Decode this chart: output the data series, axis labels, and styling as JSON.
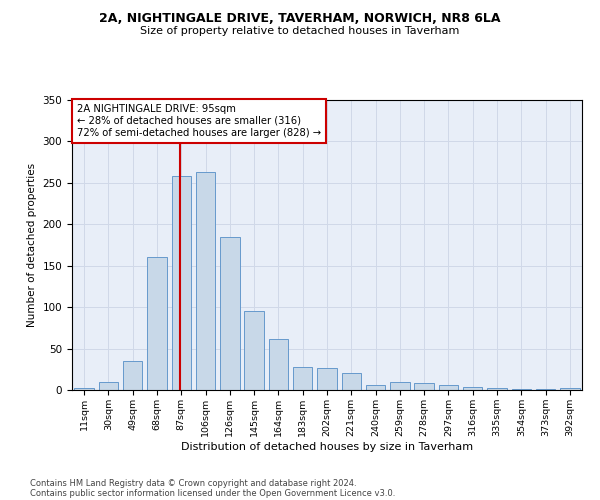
{
  "title1": "2A, NIGHTINGALE DRIVE, TAVERHAM, NORWICH, NR8 6LA",
  "title2": "Size of property relative to detached houses in Taverham",
  "xlabel": "Distribution of detached houses by size in Taverham",
  "ylabel": "Number of detached properties",
  "categories": [
    "11sqm",
    "30sqm",
    "49sqm",
    "68sqm",
    "87sqm",
    "106sqm",
    "126sqm",
    "145sqm",
    "164sqm",
    "183sqm",
    "202sqm",
    "221sqm",
    "240sqm",
    "259sqm",
    "278sqm",
    "297sqm",
    "316sqm",
    "335sqm",
    "354sqm",
    "373sqm",
    "392sqm"
  ],
  "values": [
    2,
    10,
    35,
    160,
    258,
    263,
    185,
    95,
    62,
    28,
    27,
    20,
    6,
    10,
    8,
    6,
    4,
    2,
    1,
    1,
    2
  ],
  "bar_color": "#c8d8e8",
  "bar_edge_color": "#6699cc",
  "property_label": "2A NIGHTINGALE DRIVE: 95sqm",
  "annotation_line1": "← 28% of detached houses are smaller (316)",
  "annotation_line2": "72% of semi-detached houses are larger (828) →",
  "vline_color": "#cc0000",
  "box_edge_color": "#cc0000",
  "footer1": "Contains HM Land Registry data © Crown copyright and database right 2024.",
  "footer2": "Contains public sector information licensed under the Open Government Licence v3.0.",
  "ylim": [
    0,
    350
  ],
  "grid_color": "#d0d8e8",
  "background_color": "#e8eef8"
}
